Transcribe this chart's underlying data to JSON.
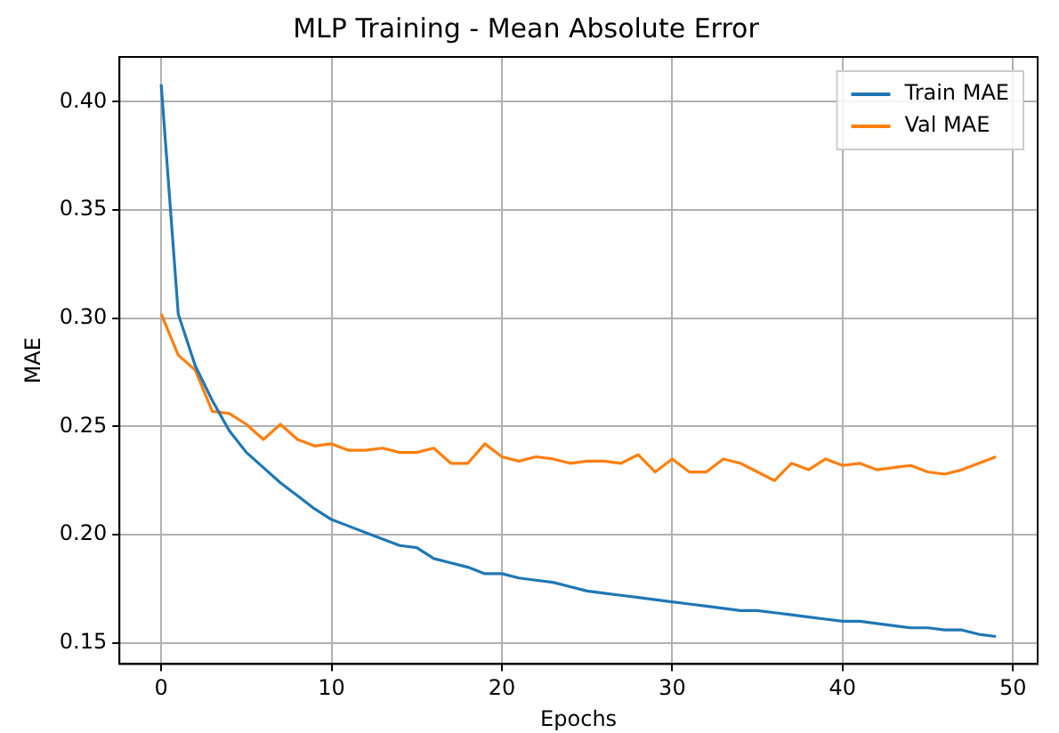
{
  "chart_data": {
    "type": "line",
    "title": "MLP Training - Mean Absolute Error",
    "xlabel": "Epochs",
    "ylabel": "MAE",
    "x": [
      0,
      1,
      2,
      3,
      4,
      5,
      6,
      7,
      8,
      9,
      10,
      11,
      12,
      13,
      14,
      15,
      16,
      17,
      18,
      19,
      20,
      21,
      22,
      23,
      24,
      25,
      26,
      27,
      28,
      29,
      30,
      31,
      32,
      33,
      34,
      35,
      36,
      37,
      38,
      39,
      40,
      41,
      42,
      43,
      44,
      45,
      46,
      47,
      48,
      49
    ],
    "series": [
      {
        "name": "Train MAE",
        "color": "#1f77b4",
        "values": [
          0.408,
          0.302,
          0.278,
          0.262,
          0.248,
          0.238,
          0.231,
          0.224,
          0.218,
          0.212,
          0.207,
          0.204,
          0.201,
          0.198,
          0.195,
          0.194,
          0.189,
          0.187,
          0.185,
          0.182,
          0.182,
          0.18,
          0.179,
          0.178,
          0.176,
          0.174,
          0.173,
          0.172,
          0.171,
          0.17,
          0.169,
          0.168,
          0.167,
          0.166,
          0.165,
          0.165,
          0.164,
          0.163,
          0.162,
          0.161,
          0.16,
          0.16,
          0.159,
          0.158,
          0.157,
          0.157,
          0.156,
          0.156,
          0.154,
          0.153
        ]
      },
      {
        "name": "Val MAE",
        "color": "#ff7f0e",
        "values": [
          0.302,
          0.283,
          0.276,
          0.257,
          0.256,
          0.251,
          0.244,
          0.251,
          0.244,
          0.241,
          0.242,
          0.239,
          0.239,
          0.24,
          0.238,
          0.238,
          0.24,
          0.233,
          0.233,
          0.242,
          0.236,
          0.234,
          0.236,
          0.235,
          0.233,
          0.234,
          0.234,
          0.233,
          0.237,
          0.229,
          0.235,
          0.229,
          0.229,
          0.235,
          0.233,
          0.229,
          0.225,
          0.233,
          0.23,
          0.235,
          0.232,
          0.233,
          0.23,
          0.231,
          0.232,
          0.229,
          0.228,
          0.23,
          0.233,
          0.236
        ]
      }
    ],
    "xlim": [
      -2.45,
      51.45
    ],
    "xticks": [
      0,
      10,
      20,
      30,
      40,
      50
    ],
    "ylim": [
      0.1403,
      0.4207
    ],
    "yticks": [
      {
        "value": 0.15,
        "label": "0.15"
      },
      {
        "value": 0.2,
        "label": "0.20"
      },
      {
        "value": 0.25,
        "label": "0.25"
      },
      {
        "value": 0.3,
        "label": "0.30"
      },
      {
        "value": 0.35,
        "label": "0.35"
      },
      {
        "value": 0.4,
        "label": "0.40"
      }
    ],
    "grid": true,
    "legend": "top right",
    "marker": "none",
    "line_style": "solid"
  }
}
